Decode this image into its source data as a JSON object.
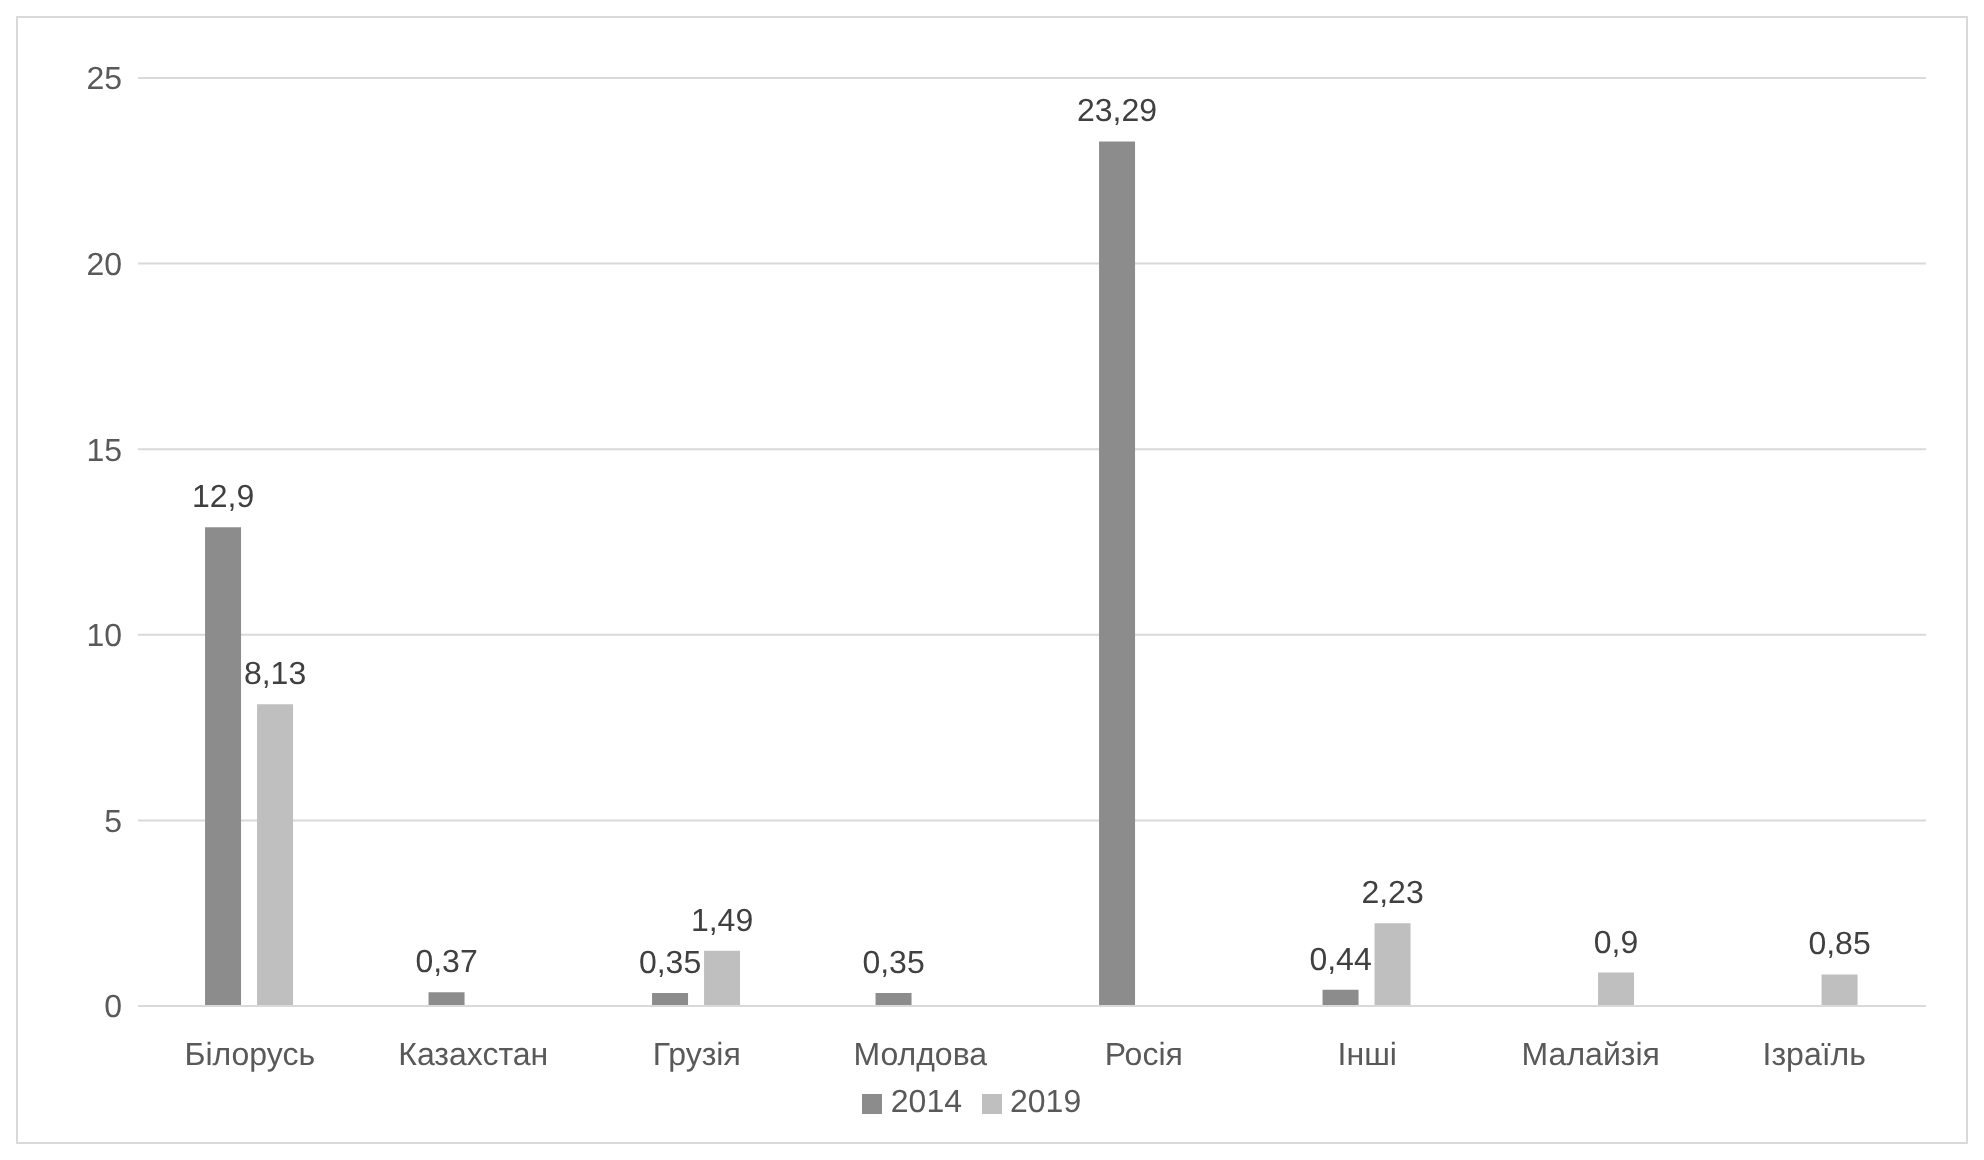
{
  "chart_data": {
    "type": "bar",
    "categories": [
      "Білорусь",
      "Казахстан",
      "Грузія",
      "Молдова",
      "Росія",
      "Інші",
      "Малайзія",
      "Ізраїль"
    ],
    "series": [
      {
        "name": "2014",
        "color": "#8c8c8c",
        "values": [
          12.9,
          0.37,
          0.35,
          0.35,
          23.29,
          0.44,
          null,
          null
        ],
        "value_labels": [
          "12,9",
          "0,37",
          "0,35",
          "0,35",
          "23,29",
          "0,44",
          null,
          null
        ]
      },
      {
        "name": "2019",
        "color": "#bfbfbf",
        "values": [
          8.13,
          null,
          1.49,
          null,
          null,
          2.23,
          0.9,
          0.85
        ],
        "value_labels": [
          "8,13",
          null,
          "1,49",
          null,
          null,
          "2,23",
          "0,9",
          "0,85"
        ]
      }
    ],
    "ylim": [
      0,
      25
    ],
    "yticks": [
      0,
      5,
      10,
      15,
      20,
      25
    ],
    "grid": "y",
    "legend": "bottom"
  }
}
